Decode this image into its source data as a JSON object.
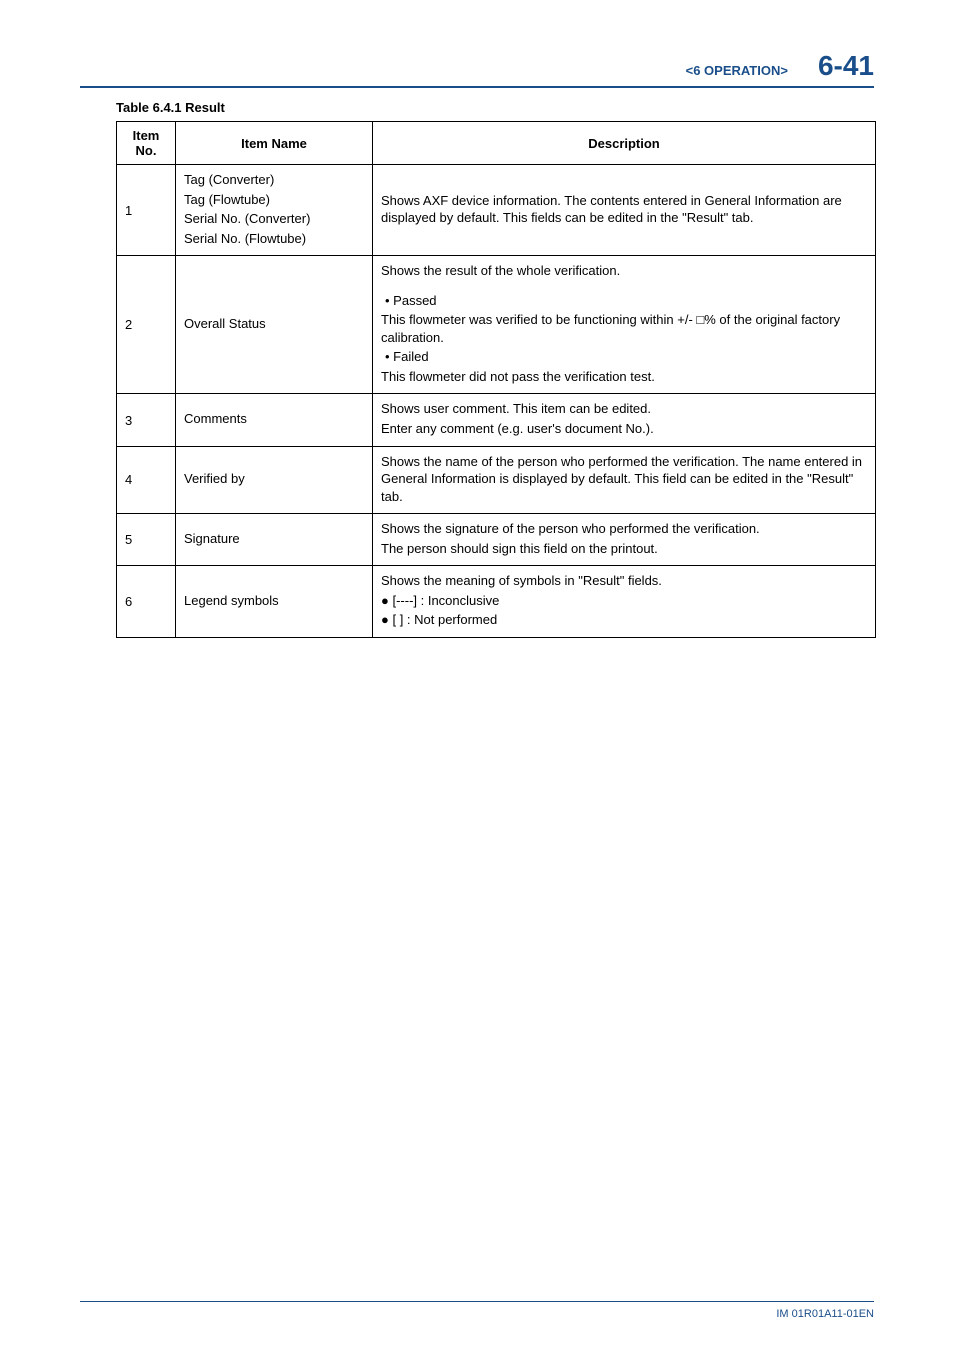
{
  "header": {
    "section": "<6  OPERATION>",
    "page_number": "6-41"
  },
  "table": {
    "caption": "Table 6.4.1 Result",
    "columns": {
      "no": "Item No.",
      "name": "Item Name",
      "desc": "Description"
    },
    "rows": [
      {
        "no": "1",
        "name_lines": [
          "Tag (Converter)",
          "Tag (Flowtube)",
          "Serial No. (Converter)",
          "Serial No. (Flowtube)"
        ],
        "desc_lines": [
          "Shows AXF device information. The contents entered in General Information are displayed by default. This fields can be edited in the \"Result\" tab."
        ]
      },
      {
        "no": "2",
        "name_lines": [
          "Overall Status"
        ],
        "desc_lines": [
          "Shows the result of the whole verification.",
          "",
          "  • Passed",
          "This flowmeter was verified to be functioning within +/- □% of the original factory calibration.",
          "  • Failed",
          "This flowmeter did not pass the verification test."
        ]
      },
      {
        "no": "3",
        "name_lines": [
          "Comments"
        ],
        "desc_lines": [
          "Shows user comment. This item can be edited.",
          "Enter any comment (e.g. user's document No.)."
        ]
      },
      {
        "no": "4",
        "name_lines": [
          "Verified by"
        ],
        "desc_lines": [
          "Shows the name of the person who performed the verification. The name entered in General Information is displayed by default. This field can be edited in the \"Result\" tab."
        ]
      },
      {
        "no": "5",
        "name_lines": [
          "Signature"
        ],
        "desc_lines": [
          "Shows the signature of the person who performed the verification.",
          "The person should sign this field on the printout."
        ]
      },
      {
        "no": "6",
        "name_lines": [
          "Legend symbols"
        ],
        "desc_lines": [
          "Shows the meaning of symbols in \"Result\" fields.",
          "● [----] : Inconclusive",
          "● [      ] : Not performed"
        ]
      }
    ]
  },
  "footer": {
    "doc_id": "IM 01R01A11-01EN"
  }
}
